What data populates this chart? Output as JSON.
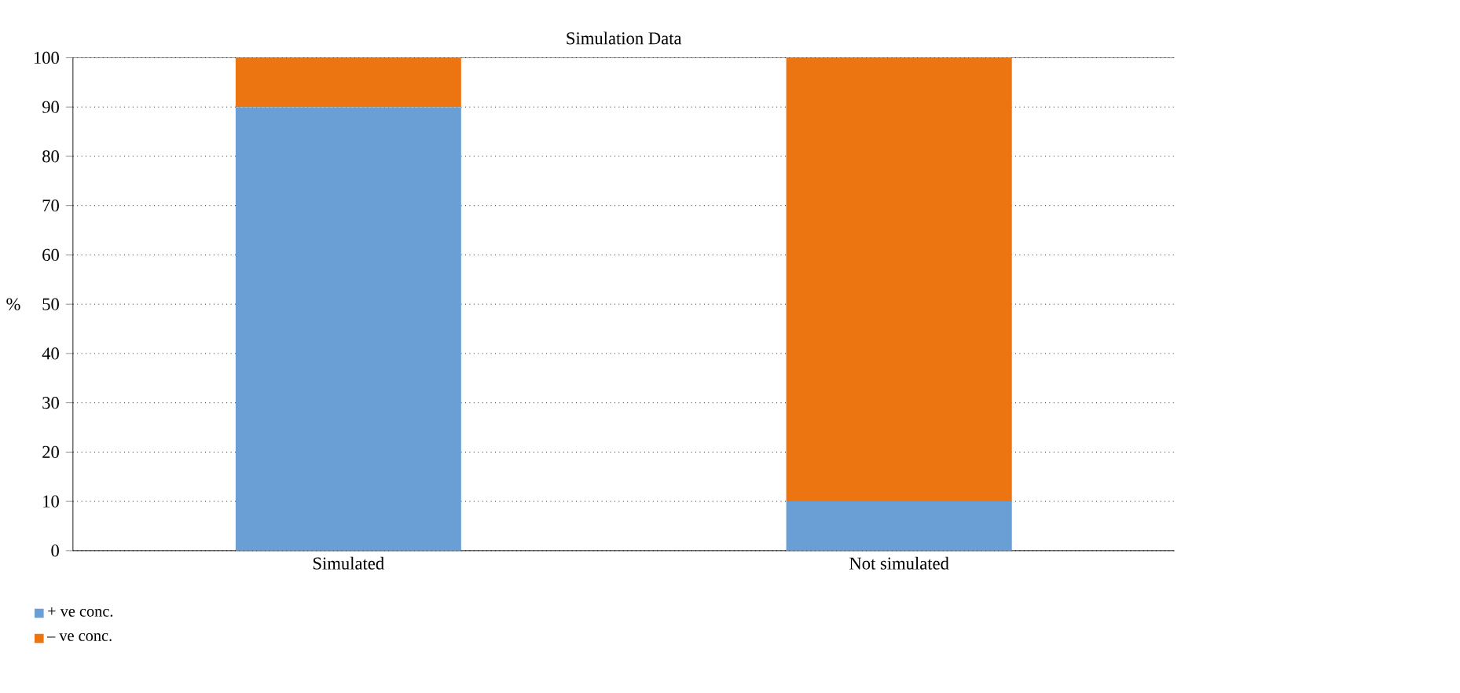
{
  "chart_data": {
    "type": "bar",
    "title": "Simulation Data",
    "ylabel": "%",
    "categories": [
      "Simulated",
      "Not simulated"
    ],
    "series": [
      {
        "name": "+ ve conc.",
        "color": "#6a9fd6",
        "values": [
          90,
          10
        ]
      },
      {
        "name": "– ve conc.",
        "color": "#ec7411",
        "values": [
          10,
          90
        ]
      }
    ],
    "stacked": true,
    "ylim": [
      0,
      100
    ],
    "yticks": [
      0,
      10,
      20,
      30,
      40,
      50,
      60,
      70,
      80,
      90,
      100
    ],
    "grid": "y",
    "legend": "bottom left"
  }
}
